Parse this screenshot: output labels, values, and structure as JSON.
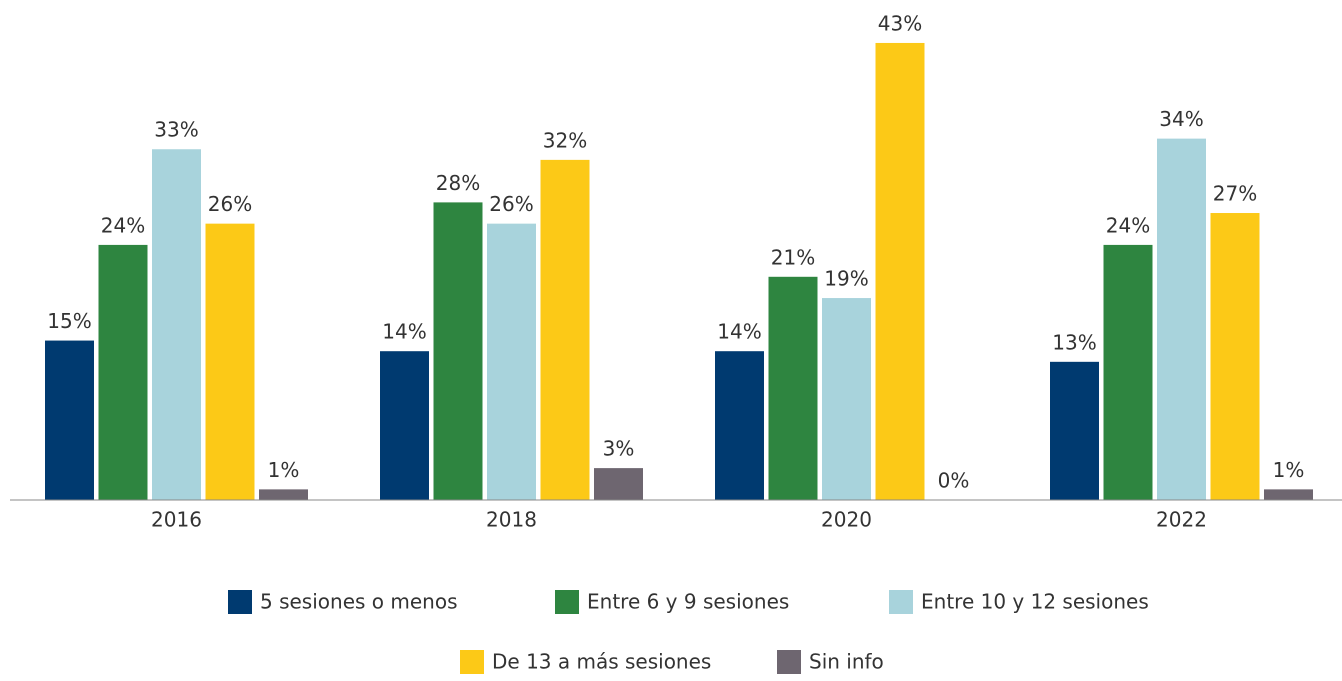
{
  "chart_data": {
    "type": "bar",
    "categories": [
      "2016",
      "2018",
      "2020",
      "2022"
    ],
    "series": [
      {
        "name": "5 sesiones o menos",
        "color": "#003a70",
        "values": [
          15,
          14,
          14,
          13
        ],
        "value_labels": [
          "15%",
          "14%",
          "14%",
          "13%"
        ]
      },
      {
        "name": "Entre 6 y 9 sesiones",
        "color": "#2e8540",
        "values": [
          24,
          28,
          21,
          24
        ],
        "value_labels": [
          "24%",
          "28%",
          "21%",
          "24%"
        ]
      },
      {
        "name": "Entre 10 y 12 sesiones",
        "color": "#a8d3dc",
        "values": [
          33,
          26,
          19,
          34
        ],
        "value_labels": [
          "33%",
          "26%",
          "19%",
          "34%"
        ]
      },
      {
        "name": "De 13 a más sesiones",
        "color": "#fcc917",
        "values": [
          26,
          32,
          43,
          27
        ],
        "value_labels": [
          "26%",
          "32%",
          "43%",
          "27%"
        ]
      },
      {
        "name": "Sin info",
        "color": "#6e6670",
        "values": [
          1,
          3,
          0,
          1
        ],
        "value_labels": [
          "1%",
          "3%",
          "0%",
          "1%"
        ]
      }
    ],
    "ylim": [
      0,
      45
    ],
    "grid": false,
    "legend": "bottom"
  }
}
